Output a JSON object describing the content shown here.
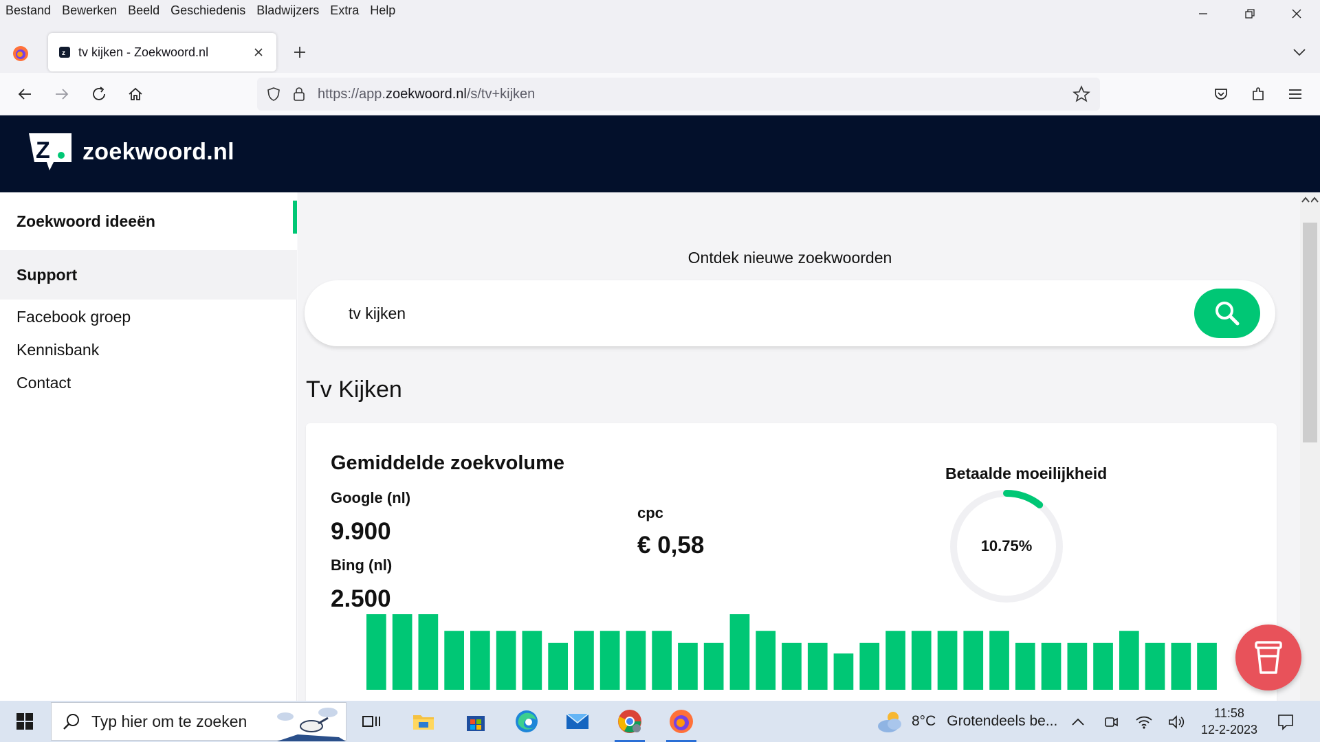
{
  "menubar": {
    "items": [
      "Bestand",
      "Bewerken",
      "Beeld",
      "Geschiedenis",
      "Bladwijzers",
      "Extra",
      "Help"
    ]
  },
  "tabs": {
    "active_title": "tv kijken - Zoekwoord.nl"
  },
  "urlbar": {
    "prefix": "https://app.",
    "domain": "zoekwoord.nl",
    "path": "/s/tv+kijken"
  },
  "site": {
    "name": "zoekwoord.nl"
  },
  "sidebar": {
    "active": "Zoekwoord ideeën",
    "support": "Support",
    "links": [
      "Facebook groep",
      "Kennisbank",
      "Contact"
    ]
  },
  "main": {
    "discover_label": "Ontdek nieuwe zoekwoorden",
    "search_value": "tv kijken",
    "result_title": "Tv Kijken"
  },
  "card": {
    "heading": "Gemiddelde zoekvolume",
    "google_label": "Google (nl)",
    "google_value": "9.900",
    "bing_label": "Bing (nl)",
    "bing_value": "2.500",
    "cpc_label": "cpc",
    "cpc_value": "€ 0,58",
    "difficulty_label": "Betaalde moeilijkheid",
    "difficulty_text": "10.75%",
    "difficulty_fraction": 0.1075
  },
  "chart_data": {
    "type": "bar",
    "values": [
      100,
      100,
      100,
      78,
      78,
      78,
      78,
      62,
      78,
      78,
      78,
      78,
      62,
      62,
      100,
      78,
      62,
      62,
      48,
      62,
      78,
      78,
      78,
      78,
      78,
      62,
      62,
      62,
      62,
      78,
      62,
      62,
      62
    ]
  },
  "taskbar": {
    "search_placeholder": "Typ hier om te zoeken",
    "weather_temp": "8°C",
    "weather_cond": "Grotendeels be...",
    "time": "11:58",
    "date": "12-2-2023"
  },
  "colors": {
    "accent": "#00c775",
    "header_bg": "#03102b",
    "cup_button": "#e8525a"
  }
}
